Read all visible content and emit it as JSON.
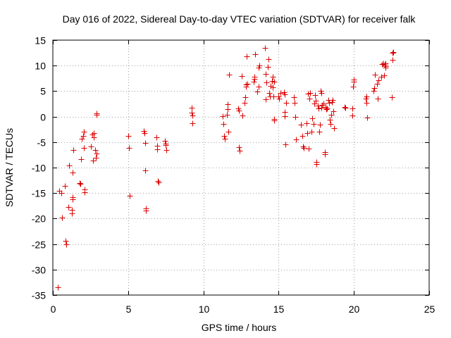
{
  "chart_data": {
    "type": "scatter",
    "title": "Day 016 of 2022, Sidereal Day-to-day VTEC variation (SDTVAR) for receiver falk",
    "xlabel": "GPS time / hours",
    "ylabel": "SDTVAR / TECUs",
    "xlim": [
      0,
      25
    ],
    "ylim": [
      -35,
      15
    ],
    "xticks": [
      0,
      5,
      10,
      15,
      20,
      25
    ],
    "yticks": [
      -35,
      -30,
      -25,
      -20,
      -15,
      -10,
      -5,
      0,
      5,
      10,
      15
    ],
    "xtick_labels": [
      "0",
      "5",
      "10",
      "15",
      "20",
      "25"
    ],
    "ytick_labels": [
      "-35",
      "-30",
      "-25",
      "-20",
      "-15",
      "-10",
      "-5",
      "0",
      "5",
      "10",
      "15"
    ],
    "grid": true,
    "marker": "+",
    "color": "#dd0000",
    "series": [
      {
        "name": "SDTVAR",
        "points": [
          [
            0.35,
            -33.5
          ],
          [
            0.4,
            -14.5
          ],
          [
            0.55,
            -15.0
          ],
          [
            0.6,
            -19.8
          ],
          [
            0.8,
            -13.6
          ],
          [
            0.85,
            -24.4
          ],
          [
            0.88,
            -25.0
          ],
          [
            1.05,
            -17.8
          ],
          [
            1.1,
            -9.6
          ],
          [
            1.25,
            -18.3
          ],
          [
            1.28,
            -19.0
          ],
          [
            1.3,
            -15.8
          ],
          [
            1.32,
            -16.2
          ],
          [
            1.3,
            -11.0
          ],
          [
            1.35,
            -6.6
          ],
          [
            1.8,
            -13.0
          ],
          [
            1.82,
            -13.2
          ],
          [
            1.85,
            -8.3
          ],
          [
            1.9,
            -4.3
          ],
          [
            2.0,
            -3.8
          ],
          [
            2.05,
            -3.0
          ],
          [
            2.08,
            -6.1
          ],
          [
            2.1,
            -14.3
          ],
          [
            2.12,
            -14.8
          ],
          [
            2.55,
            -5.8
          ],
          [
            2.6,
            -3.5
          ],
          [
            2.65,
            -8.6
          ],
          [
            2.7,
            -4.0
          ],
          [
            2.72,
            -3.2
          ],
          [
            2.8,
            -6.5
          ],
          [
            2.85,
            -8.0
          ],
          [
            2.88,
            -7.2
          ],
          [
            2.9,
            0.4
          ],
          [
            2.92,
            0.7
          ],
          [
            5.0,
            -3.8
          ],
          [
            5.05,
            -6.1
          ],
          [
            5.08,
            -15.5
          ],
          [
            6.05,
            -2.8
          ],
          [
            6.1,
            -3.2
          ],
          [
            6.12,
            -5.1
          ],
          [
            6.15,
            -10.5
          ],
          [
            6.18,
            -18.0
          ],
          [
            6.2,
            -18.4
          ],
          [
            6.9,
            -4.0
          ],
          [
            6.92,
            -5.7
          ],
          [
            6.95,
            -6.4
          ],
          [
            6.98,
            -12.6
          ],
          [
            7.0,
            -12.9
          ],
          [
            7.45,
            -4.8
          ],
          [
            7.48,
            -5.3
          ],
          [
            7.5,
            -5.6
          ],
          [
            7.52,
            -6.6
          ],
          [
            9.2,
            1.8
          ],
          [
            9.22,
            0.8
          ],
          [
            9.25,
            0.2
          ],
          [
            9.28,
            -1.3
          ],
          [
            11.3,
            0.1
          ],
          [
            11.35,
            -1.5
          ],
          [
            11.38,
            -3.8
          ],
          [
            11.4,
            -4.4
          ],
          [
            11.55,
            0.3
          ],
          [
            11.6,
            1.5
          ],
          [
            11.62,
            2.4
          ],
          [
            11.65,
            -3.0
          ],
          [
            11.7,
            8.3
          ],
          [
            12.3,
            1.6
          ],
          [
            12.35,
            1.2
          ],
          [
            12.38,
            -6.0
          ],
          [
            12.4,
            -6.7
          ],
          [
            12.55,
            8.0
          ],
          [
            12.6,
            0.2
          ],
          [
            12.75,
            2.7
          ],
          [
            12.8,
            3.8
          ],
          [
            12.82,
            5.9
          ],
          [
            12.85,
            6.3
          ],
          [
            12.9,
            6.5
          ],
          [
            12.88,
            11.8
          ],
          [
            13.35,
            6.8
          ],
          [
            13.38,
            7.4
          ],
          [
            13.4,
            7.8
          ],
          [
            13.42,
            12.2
          ],
          [
            13.6,
            4.9
          ],
          [
            13.65,
            5.9
          ],
          [
            13.68,
            9.6
          ],
          [
            13.7,
            10.0
          ],
          [
            14.1,
            13.5
          ],
          [
            14.12,
            8.4
          ],
          [
            14.15,
            3.4
          ],
          [
            14.2,
            6.7
          ],
          [
            14.3,
            9.7
          ],
          [
            14.32,
            11.3
          ],
          [
            14.35,
            4.7
          ],
          [
            14.4,
            3.9
          ],
          [
            14.45,
            6.0
          ],
          [
            14.55,
            7.0
          ],
          [
            14.6,
            7.8
          ],
          [
            14.62,
            5.7
          ],
          [
            14.65,
            3.9
          ],
          [
            14.68,
            -0.7
          ],
          [
            14.7,
            -0.5
          ],
          [
            14.72,
            6.8
          ],
          [
            15.0,
            4.0
          ],
          [
            15.05,
            3.6
          ],
          [
            15.1,
            4.6
          ],
          [
            15.35,
            4.8
          ],
          [
            15.38,
            4.3
          ],
          [
            15.4,
            0.9
          ],
          [
            15.42,
            0.1
          ],
          [
            15.45,
            -5.5
          ],
          [
            15.48,
            2.7
          ],
          [
            16.0,
            3.8
          ],
          [
            16.05,
            2.7
          ],
          [
            16.1,
            0.0
          ],
          [
            16.15,
            -4.5
          ],
          [
            16.5,
            -1.6
          ],
          [
            16.55,
            -3.8
          ],
          [
            16.6,
            -5.9
          ],
          [
            16.65,
            -6.2
          ],
          [
            16.85,
            -1.3
          ],
          [
            16.9,
            -3.3
          ],
          [
            16.95,
            4.5
          ],
          [
            17.0,
            -6.3
          ],
          [
            17.05,
            3.6
          ],
          [
            17.1,
            4.6
          ],
          [
            17.2,
            -3.0
          ],
          [
            17.25,
            -0.4
          ],
          [
            17.3,
            -1.4
          ],
          [
            17.35,
            2.6
          ],
          [
            17.4,
            4.2
          ],
          [
            17.45,
            3.1
          ],
          [
            17.5,
            -8.9
          ],
          [
            17.52,
            -9.3
          ],
          [
            17.6,
            2.2
          ],
          [
            17.65,
            1.6
          ],
          [
            17.7,
            -2.9
          ],
          [
            17.75,
            -1.6
          ],
          [
            17.8,
            5.0
          ],
          [
            17.82,
            4.7
          ],
          [
            17.85,
            1.8
          ],
          [
            17.88,
            2.3
          ],
          [
            18.0,
            2.6
          ],
          [
            18.05,
            -7.0
          ],
          [
            18.08,
            -7.4
          ],
          [
            18.1,
            1.9
          ],
          [
            18.15,
            1.4
          ],
          [
            18.2,
            1.6
          ],
          [
            18.3,
            3.2
          ],
          [
            18.35,
            2.7
          ],
          [
            18.4,
            -0.6
          ],
          [
            18.45,
            -1.4
          ],
          [
            18.5,
            0.3
          ],
          [
            18.55,
            2.9
          ],
          [
            18.6,
            3.2
          ],
          [
            18.65,
            1.0
          ],
          [
            18.7,
            -2.2
          ],
          [
            19.4,
            1.9
          ],
          [
            19.45,
            1.8
          ],
          [
            19.9,
            1.6
          ],
          [
            19.92,
            0.2
          ],
          [
            19.95,
            5.9
          ],
          [
            19.98,
            6.8
          ],
          [
            20.0,
            7.2
          ],
          [
            20.8,
            3.5
          ],
          [
            20.82,
            2.7
          ],
          [
            20.85,
            4.0
          ],
          [
            20.88,
            -0.2
          ],
          [
            21.3,
            5.1
          ],
          [
            21.35,
            5.6
          ],
          [
            21.38,
            8.3
          ],
          [
            21.55,
            6.5
          ],
          [
            21.6,
            3.6
          ],
          [
            21.62,
            7.1
          ],
          [
            21.8,
            7.8
          ],
          [
            21.85,
            10.3
          ],
          [
            21.95,
            10.4
          ],
          [
            22.0,
            8.1
          ],
          [
            22.05,
            10.2
          ],
          [
            22.08,
            9.6
          ],
          [
            22.1,
            9.9
          ],
          [
            22.12,
            10.5
          ],
          [
            22.5,
            3.8
          ],
          [
            22.55,
            11.2
          ],
          [
            22.58,
            12.5
          ],
          [
            22.6,
            12.7
          ]
        ]
      }
    ]
  }
}
